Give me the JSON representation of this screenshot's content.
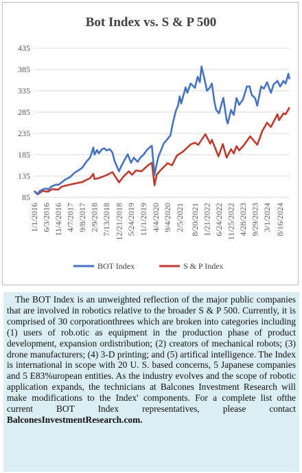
{
  "chart_data": {
    "type": "line",
    "title": "Bot Index vs. S & P 500",
    "ylim": [
      85,
      435
    ],
    "yticks": [
      85,
      135,
      185,
      235,
      285,
      335,
      385,
      435
    ],
    "xlim": [
      "2016-01-01",
      "2024-12-15"
    ],
    "xtick_labels": [
      "1/1/2016",
      "6/3/2016",
      "11/4/2016",
      "4/7/2017",
      "9/8/2017",
      "2/9/2018",
      "7/13/2018",
      "12/21/2018",
      "5/24/2019",
      "11/1/2019",
      "4/4/2020",
      "9/4/2020",
      "2/5/2021",
      "8/20/2021",
      "1/21/2022",
      "6/24/2022",
      "11/25/2022",
      "4/28/2023",
      "9/29/2023",
      "3/1/2024",
      "8/16/2024"
    ],
    "xtick_dates": [
      "2016-01-01",
      "2016-06-03",
      "2016-11-04",
      "2017-04-07",
      "2017-09-08",
      "2018-02-09",
      "2018-07-13",
      "2018-12-21",
      "2019-05-24",
      "2019-11-01",
      "2020-04-04",
      "2020-09-04",
      "2021-02-05",
      "2021-08-20",
      "2022-01-21",
      "2022-06-24",
      "2022-11-25",
      "2023-04-28",
      "2023-09-29",
      "2024-03-01",
      "2024-08-16"
    ],
    "grid": true,
    "legend_position": "bottom",
    "series": [
      {
        "name": "BOT Index",
        "color": "#4472c4",
        "points": [
          [
            "2016-01-01",
            100
          ],
          [
            "2016-01-22",
            95
          ],
          [
            "2016-02-12",
            93
          ],
          [
            "2016-03-11",
            100
          ],
          [
            "2016-04-15",
            103
          ],
          [
            "2016-06-03",
            106
          ],
          [
            "2016-06-24",
            103
          ],
          [
            "2016-08-05",
            110
          ],
          [
            "2016-10-07",
            115
          ],
          [
            "2016-11-04",
            114
          ],
          [
            "2016-12-16",
            120
          ],
          [
            "2017-02-03",
            127
          ],
          [
            "2017-04-07",
            133
          ],
          [
            "2017-06-02",
            143
          ],
          [
            "2017-08-04",
            150
          ],
          [
            "2017-09-08",
            155
          ],
          [
            "2017-10-27",
            168
          ],
          [
            "2017-12-15",
            178
          ],
          [
            "2018-01-26",
            202
          ],
          [
            "2018-02-09",
            185
          ],
          [
            "2018-03-16",
            196
          ],
          [
            "2018-04-06",
            188
          ],
          [
            "2018-05-18",
            198
          ],
          [
            "2018-06-15",
            200
          ],
          [
            "2018-07-13",
            195
          ],
          [
            "2018-08-24",
            198
          ],
          [
            "2018-09-28",
            190
          ],
          [
            "2018-10-26",
            170
          ],
          [
            "2018-12-21",
            146
          ],
          [
            "2019-01-18",
            158
          ],
          [
            "2019-02-22",
            170
          ],
          [
            "2019-04-12",
            186
          ],
          [
            "2019-05-24",
            166
          ],
          [
            "2019-06-28",
            178
          ],
          [
            "2019-08-16",
            168
          ],
          [
            "2019-09-20",
            178
          ],
          [
            "2019-11-01",
            185
          ],
          [
            "2019-12-13",
            196
          ],
          [
            "2020-01-17",
            202
          ],
          [
            "2020-02-14",
            206
          ],
          [
            "2020-03-20",
            138
          ],
          [
            "2020-04-04",
            152
          ],
          [
            "2020-05-08",
            180
          ],
          [
            "2020-06-12",
            196
          ],
          [
            "2020-07-17",
            212
          ],
          [
            "2020-09-04",
            222
          ],
          [
            "2020-10-09",
            230
          ],
          [
            "2020-11-13",
            262
          ],
          [
            "2020-12-18",
            288
          ],
          [
            "2021-01-15",
            300
          ],
          [
            "2021-02-05",
            322
          ],
          [
            "2021-02-26",
            305
          ],
          [
            "2021-03-19",
            320
          ],
          [
            "2021-04-23",
            343
          ],
          [
            "2021-05-14",
            330
          ],
          [
            "2021-06-25",
            352
          ],
          [
            "2021-08-20",
            342
          ],
          [
            "2021-09-24",
            368
          ],
          [
            "2021-10-22",
            355
          ],
          [
            "2021-11-12",
            392
          ],
          [
            "2021-12-10",
            370
          ],
          [
            "2022-01-21",
            335
          ],
          [
            "2022-02-25",
            342
          ],
          [
            "2022-03-25",
            352
          ],
          [
            "2022-04-29",
            306
          ],
          [
            "2022-05-20",
            290
          ],
          [
            "2022-06-24",
            282
          ],
          [
            "2022-07-29",
            306
          ],
          [
            "2022-08-19",
            318
          ],
          [
            "2022-09-30",
            266
          ],
          [
            "2022-10-14",
            258
          ],
          [
            "2022-11-25",
            290
          ],
          [
            "2022-12-30",
            278
          ],
          [
            "2023-02-03",
            318
          ],
          [
            "2023-03-10",
            302
          ],
          [
            "2023-04-28",
            315
          ],
          [
            "2023-06-16",
            345
          ],
          [
            "2023-07-21",
            345
          ],
          [
            "2023-08-18",
            325
          ],
          [
            "2023-09-29",
            318
          ],
          [
            "2023-10-27",
            300
          ],
          [
            "2023-12-15",
            345
          ],
          [
            "2024-01-19",
            340
          ],
          [
            "2024-03-01",
            355
          ],
          [
            "2024-04-19",
            330
          ],
          [
            "2024-05-24",
            350
          ],
          [
            "2024-07-12",
            358
          ],
          [
            "2024-08-16",
            345
          ],
          [
            "2024-09-27",
            358
          ],
          [
            "2024-10-25",
            352
          ],
          [
            "2024-11-29",
            375
          ],
          [
            "2024-12-13",
            362
          ]
        ]
      },
      {
        "name": "S & P Index",
        "color": "#c0392b",
        "points": [
          [
            "2016-01-01",
            100
          ],
          [
            "2016-02-12",
            92
          ],
          [
            "2016-04-15",
            100
          ],
          [
            "2016-06-24",
            98
          ],
          [
            "2016-08-12",
            104
          ],
          [
            "2016-11-04",
            103
          ],
          [
            "2016-12-16",
            110
          ],
          [
            "2017-04-07",
            115
          ],
          [
            "2017-09-08",
            121
          ],
          [
            "2017-12-15",
            130
          ],
          [
            "2018-01-26",
            140
          ],
          [
            "2018-02-09",
            128
          ],
          [
            "2018-04-06",
            130
          ],
          [
            "2018-07-13",
            137
          ],
          [
            "2018-09-28",
            144
          ],
          [
            "2018-12-21",
            120
          ],
          [
            "2019-02-22",
            135
          ],
          [
            "2019-04-26",
            146
          ],
          [
            "2019-06-07",
            138
          ],
          [
            "2019-07-26",
            148
          ],
          [
            "2019-10-04",
            146
          ],
          [
            "2019-12-27",
            160
          ],
          [
            "2020-02-14",
            166
          ],
          [
            "2020-03-20",
            113
          ],
          [
            "2020-04-17",
            138
          ],
          [
            "2020-06-12",
            150
          ],
          [
            "2020-09-04",
            165
          ],
          [
            "2020-10-30",
            160
          ],
          [
            "2020-12-31",
            183
          ],
          [
            "2021-03-19",
            192
          ],
          [
            "2021-06-25",
            209
          ],
          [
            "2021-08-20",
            213
          ],
          [
            "2021-10-01",
            208
          ],
          [
            "2021-12-31",
            233
          ],
          [
            "2022-03-04",
            211
          ],
          [
            "2022-03-25",
            220
          ],
          [
            "2022-06-17",
            181
          ],
          [
            "2022-08-12",
            210
          ],
          [
            "2022-09-30",
            178
          ],
          [
            "2022-11-25",
            198
          ],
          [
            "2022-12-30",
            188
          ],
          [
            "2023-02-03",
            205
          ],
          [
            "2023-03-10",
            195
          ],
          [
            "2023-04-28",
            205
          ],
          [
            "2023-07-28",
            228
          ],
          [
            "2023-10-27",
            208
          ],
          [
            "2023-12-29",
            240
          ],
          [
            "2024-03-01",
            260
          ],
          [
            "2024-04-19",
            250
          ],
          [
            "2024-07-12",
            280
          ],
          [
            "2024-08-02",
            266
          ],
          [
            "2024-09-27",
            282
          ],
          [
            "2024-10-25",
            280
          ],
          [
            "2024-12-13",
            296
          ]
        ]
      }
    ]
  },
  "description": {
    "text": "The BOT Index is an unweighted reflection of the major public companies that are involved in robotics relative to the broader S & P 500. Currently, it is comprised of 30 corporationthrees which are broken into categories including (1) users of rob.otic as equipment in the production phase of product development, expansion ordistribution; (2) creators of mechanical robots; (3) drone manufacturers; (4) 3-D printing; and (5) artifical intelligence. The Index is international in scope with 20 U. S. based concerns, 5 Japanese companies and 5 E83%uropean entities. As the industry evolves and the scope of robotic application expands, the technicians at Balcones Investment Research will make modifications to the Index' components. For a complete list ofthe current BOT Index representatives, please contact",
    "website": "BalconesInvestmentResearch.com."
  }
}
